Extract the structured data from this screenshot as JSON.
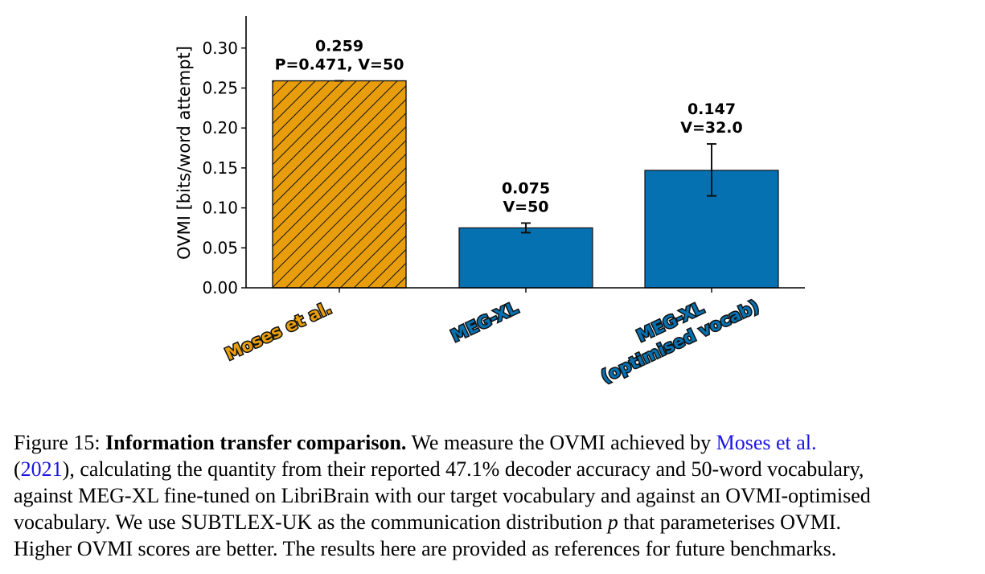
{
  "figure": {
    "number_label": "Figure 15:",
    "colors": {
      "moses": "#E89E0C",
      "megxl": "#0571B0",
      "axis": "#000000",
      "citation": "#1a14e6"
    }
  },
  "chart_data": {
    "type": "bar",
    "categories": [
      "Moses et al.",
      "MEG-XL",
      "MEG-XL\n(optimised vocab)"
    ],
    "category_lines": [
      [
        "Moses et al."
      ],
      [
        "MEG-XL"
      ],
      [
        "MEG-XL",
        "(optimised vocab)"
      ]
    ],
    "values": [
      0.259,
      0.075,
      0.147
    ],
    "errors": [
      {
        "low": 0.259,
        "high": 0.259
      },
      {
        "low": 0.069,
        "high": 0.081
      },
      {
        "low": 0.115,
        "high": 0.18
      }
    ],
    "bar_colors": [
      "#E89E0C",
      "#0571B0",
      "#0571B0"
    ],
    "hatched": [
      true,
      false,
      false
    ],
    "value_labels": [
      [
        "0.259",
        "P=0.471, V=50"
      ],
      [
        "0.075",
        "V=50"
      ],
      [
        "0.147",
        "V=32.0"
      ]
    ],
    "ylabel": "OVMI [bits/word attempt]",
    "xlabel": "",
    "ylim": [
      0.0,
      0.34
    ],
    "yticks": [
      "0.00",
      "0.05",
      "0.10",
      "0.15",
      "0.20",
      "0.25",
      "0.30"
    ],
    "grid": false,
    "legend": "none"
  },
  "caption": {
    "label": "Figure 15:",
    "title": "Information transfer comparison.",
    "line1_text": "We measure the OVMI achieved by",
    "citation_authors": "Moses et al.",
    "citation_year_open": "(",
    "citation_year": "2021",
    "line2_rest": "), calculating the quantity from their reported",
    "percent": "47.1%",
    "line2_end": "decoder accuracy and 50-word vocabulary,",
    "line3": "against MEG-XL fine-tuned on LibriBrain with our target vocabulary and against an OVMI-optimised",
    "line4_start": "vocabulary. We use SUBTLEX-UK as the communication distribution",
    "p_symbol": "p",
    "line4_end": "that parameterises OVMI.",
    "line5": "Higher OVMI scores are better. The results here are provided as references for future benchmarks."
  }
}
